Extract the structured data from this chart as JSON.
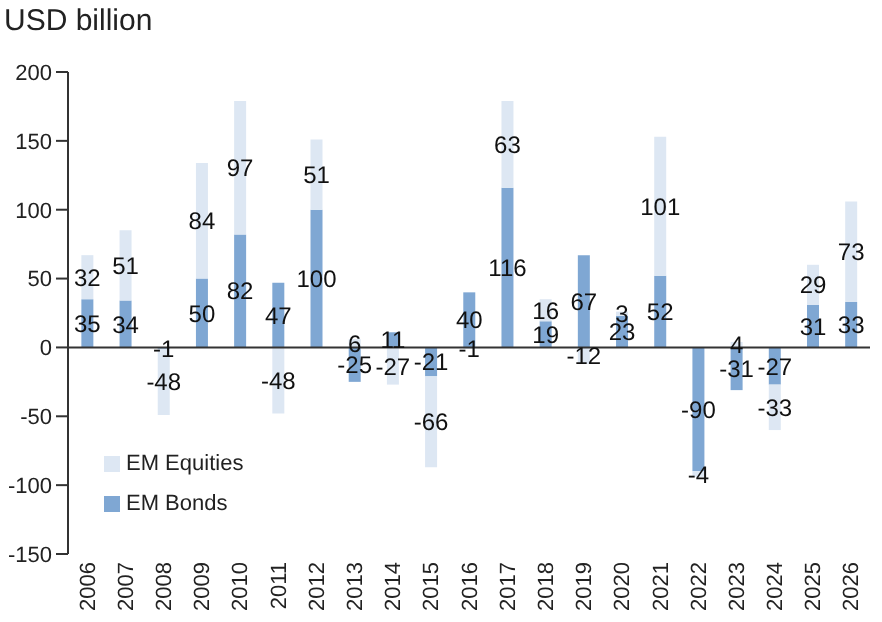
{
  "chart_data": {
    "type": "bar",
    "ylabel": "USD billion",
    "stacked": true,
    "categories": [
      "2006",
      "2007",
      "2008",
      "2009",
      "2010",
      "2011",
      "2012",
      "2013",
      "2014",
      "2015",
      "2016",
      "2017",
      "2018",
      "2019",
      "2020",
      "2021",
      "2022",
      "2023",
      "2024",
      "2025",
      "2026"
    ],
    "series": [
      {
        "name": "EM Bonds",
        "color": "#7fa7d3",
        "values": [
          35,
          34,
          -1,
          50,
          82,
          47,
          100,
          -25,
          11,
          -21,
          40,
          116,
          19,
          67,
          23,
          52,
          -90,
          -31,
          -27,
          31,
          33
        ]
      },
      {
        "name": "EM Equities",
        "color": "#dde7f3",
        "values": [
          32,
          51,
          -48,
          84,
          97,
          -48,
          51,
          6,
          -27,
          -66,
          -1,
          63,
          16,
          -12,
          3,
          101,
          -4,
          4,
          -33,
          29,
          73
        ]
      }
    ],
    "ylim": [
      -150,
      200
    ],
    "yticks": [
      -150,
      -100,
      -50,
      0,
      50,
      100,
      150,
      200
    ],
    "legend": "bottom left",
    "data_labels": true
  }
}
